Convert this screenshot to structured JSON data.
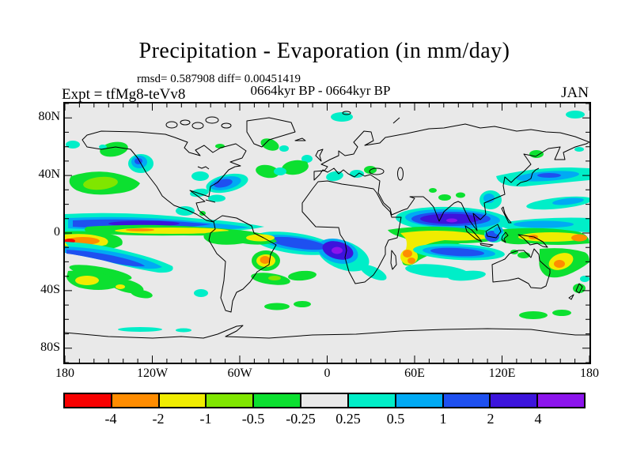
{
  "header": {
    "title": "Precipitation - Evaporation (in mm/day)",
    "stats_line": "rmsd= 0.587908 diff= 0.00451419",
    "period_line": "0664kyr BP - 0664kyr BP",
    "experiment_label": "Expt = tfMg8-teVv8",
    "month_label": "JAN"
  },
  "axes": {
    "lat_labels": [
      "80N",
      "40N",
      "0",
      "40S",
      "80S"
    ],
    "lon_labels": [
      "180",
      "120W",
      "60W",
      "0",
      "60E",
      "120E",
      "180"
    ]
  },
  "map": {
    "background": "#e9e9e9",
    "coastline_color": "#000000"
  },
  "colorbar": {
    "labels": [
      "-4",
      "-2",
      "-1",
      "-0.5",
      "-0.25",
      "0.25",
      "0.5",
      "1",
      "2",
      "4"
    ],
    "colors": [
      "#f80000",
      "#ff8c00",
      "#f0ec00",
      "#80e600",
      "#0ce030",
      "#e9e9e9",
      "#00eec8",
      "#00aaf4",
      "#1e50f0",
      "#3c14dc",
      "#8c14ec"
    ]
  },
  "chart_data": {
    "type": "heatmap",
    "subtype": "filled-contour world map, equirectangular projection",
    "title": "Precipitation - Evaporation (in mm/day)",
    "units": "mm/day",
    "month": "JAN",
    "experiment": "tfMg8-teVv8",
    "fields_compared": "0664kyr BP - 0664kyr BP",
    "rmsd": 0.587908,
    "diff": 0.00451419,
    "lon_range_deg": [
      -180,
      180
    ],
    "lat_range_deg": [
      -90,
      90
    ],
    "lon_tick_labels": [
      "180",
      "120W",
      "60W",
      "0",
      "60E",
      "120E",
      "180"
    ],
    "lat_tick_labels": [
      "80N",
      "40N",
      "0",
      "40S",
      "80S"
    ],
    "minor_tick_interval_deg": 10,
    "contour_levels_mm_day": [
      -4,
      -2,
      -1,
      -0.5,
      -0.25,
      0.25,
      0.5,
      1,
      2,
      4
    ],
    "palette_hex": [
      "#f80000",
      "#ff8c00",
      "#f0ec00",
      "#80e600",
      "#0ce030",
      "#e9e9e9",
      "#00eec8",
      "#00aaf4",
      "#1e50f0",
      "#3c14dc",
      "#8c14ec"
    ],
    "neutral_band_note": "values between -0.25 and 0.25 rendered in background gray",
    "notable_anomalies": [
      {
        "region": "ITCZ North Pacific band, 5-11N from 180 to ~100W",
        "sign": "positive",
        "peak_mm_day": "2 to 4"
      },
      {
        "region": "Equatorial East Pacific just south of ITCZ, 0-4N",
        "sign": "negative",
        "peak_mm_day": "-1 to -2"
      },
      {
        "region": "West-central Pacific near dateline, 3-10S",
        "sign": "negative",
        "peak_mm_day": "-2 to -4"
      },
      {
        "region": "South Pacific Convergence Zone, 12-27S slanting SE",
        "sign": "positive",
        "peak_mm_day": "1 to 2"
      },
      {
        "region": "Bay of Bengal / South Asia, 5-18N",
        "sign": "positive",
        "peak_mm_day": "greater than 4"
      },
      {
        "region": "Tropical Indian Ocean, 0-8S, 45E-115E",
        "sign": "negative",
        "peak_mm_day": "-1 to -2"
      },
      {
        "region": "Near Madagascar, 12-20S",
        "sign": "negative",
        "peak_mm_day": "-2"
      },
      {
        "region": "South Indian Ocean band, 9-15S, 70-115E",
        "sign": "positive",
        "peak_mm_day": "1 to 2"
      },
      {
        "region": "Equatorial Atlantic into Angola coast",
        "sign": "positive",
        "peak_mm_day": "2 to greater than 4"
      },
      {
        "region": "SE Brazil coast near 40W, 20S",
        "sign": "negative",
        "peak_mm_day": "-2"
      },
      {
        "region": "Maritime Continent / New Guinea, 0-8S",
        "sign": "negative",
        "peak_mm_day": "-1 to -2"
      },
      {
        "region": "Coral Sea / eastern Australia, 15-28S",
        "sign": "negative",
        "peak_mm_day": "-2"
      },
      {
        "region": "Kuroshio extension east of Japan, 30-40N",
        "sign": "positive",
        "peak_mm_day": "0.5 to 1"
      },
      {
        "region": "NE Pacific, 30-45N",
        "sign": "negative",
        "peak_mm_day": "-0.5"
      },
      {
        "region": "US east coast Atlantic, 28-38N",
        "sign": "positive",
        "peak_mm_day": "1 to 2"
      }
    ]
  }
}
